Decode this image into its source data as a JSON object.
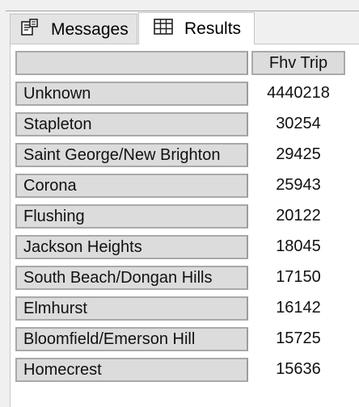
{
  "tabs": {
    "messages": {
      "label": "Messages",
      "icon": "messages-icon"
    },
    "results": {
      "label": "Results",
      "icon": "grid-icon"
    }
  },
  "grid": {
    "header": {
      "name": "",
      "value": "Fhv Trip"
    },
    "rows": [
      {
        "name": "Unknown",
        "value": "4440218"
      },
      {
        "name": "Stapleton",
        "value": "30254"
      },
      {
        "name": "Saint George/New Brighton",
        "value": "29425"
      },
      {
        "name": "Corona",
        "value": "25943"
      },
      {
        "name": "Flushing",
        "value": "20122"
      },
      {
        "name": "Jackson Heights",
        "value": "18045"
      },
      {
        "name": "South Beach/Dongan Hills",
        "value": "17150"
      },
      {
        "name": "Elmhurst",
        "value": "16142"
      },
      {
        "name": "Bloomfield/Emerson Hill",
        "value": "15725"
      },
      {
        "name": "Homecrest",
        "value": "15636"
      }
    ]
  }
}
